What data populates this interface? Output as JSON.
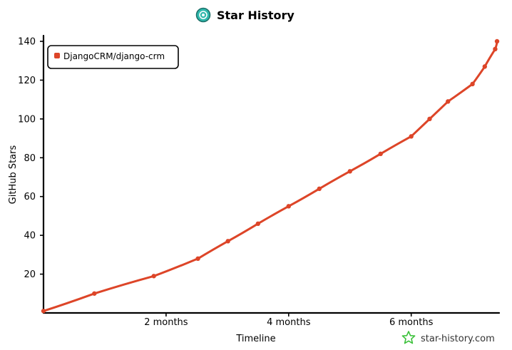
{
  "colors": {
    "series": "#dd4528",
    "axis": "#000000",
    "logo": "#2fb8ac",
    "brand_icon": "#3cc13b"
  },
  "branding": {
    "logo_icon": "star-history-logo-icon",
    "watermark_icon": "star-history-star-icon",
    "watermark_text": "star-history.com"
  },
  "chart_data": {
    "type": "line",
    "title": "Star History",
    "xlabel": "Timeline",
    "ylabel": "GitHub Stars",
    "ylim": [
      0,
      140
    ],
    "xlim_months": [
      0,
      7.4
    ],
    "yticks": [
      20,
      40,
      60,
      80,
      100,
      120,
      140
    ],
    "xticks": [
      {
        "value": 2,
        "label": "2 months"
      },
      {
        "value": 4,
        "label": "4 months"
      },
      {
        "value": 6,
        "label": "6 months"
      }
    ],
    "grid": false,
    "legend_position": "top-left",
    "series": [
      {
        "name": "DjangoCRM/django-crm",
        "x_months": [
          0,
          0.83,
          1.8,
          2.52,
          3.01,
          3.5,
          4.0,
          4.5,
          5.0,
          5.5,
          6.0,
          6.3,
          6.6,
          7.0,
          7.2,
          7.37,
          7.4
        ],
        "y": [
          1,
          10,
          19,
          28,
          37,
          46,
          55,
          64,
          73,
          82,
          91,
          100,
          109,
          118,
          127,
          136,
          140
        ]
      }
    ]
  }
}
